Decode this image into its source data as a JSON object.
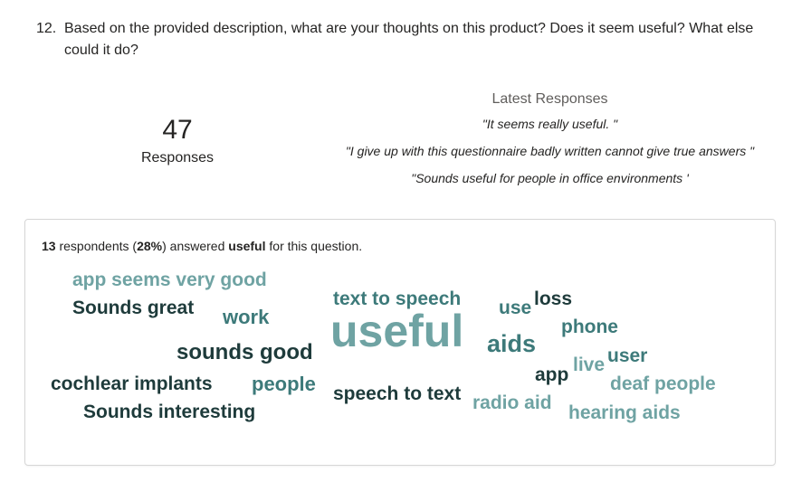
{
  "question": {
    "number": "12.",
    "text": "Based on the provided description, what are your thoughts on this product? Does it seem useful? What else could it do?"
  },
  "responses": {
    "count": "47",
    "label": "Responses"
  },
  "latest": {
    "title": "Latest Responses",
    "items": [
      "\"It seems really useful. \"",
      "\"I give up with this questionnaire badly written cannot give true answers \"",
      "\"Sounds useful for people in office environments '"
    ]
  },
  "summary": {
    "count": "13",
    "text1": " respondents (",
    "percent": "28%",
    "text2": ") answered ",
    "keyword": "useful",
    "text3": " for this question."
  },
  "colors": {
    "dark": "#1e3b3b",
    "teal": "#3d7a7a",
    "light": "#6fa3a3"
  },
  "word_cloud": [
    {
      "text": "app seems very good",
      "tone": "light"
    },
    {
      "text": "Sounds great",
      "tone": "dark"
    },
    {
      "text": "work",
      "tone": "teal"
    },
    {
      "text": "text to speech",
      "tone": "teal"
    },
    {
      "text": "use",
      "tone": "teal"
    },
    {
      "text": "loss",
      "tone": "dark"
    },
    {
      "text": "useful",
      "tone": "light"
    },
    {
      "text": "phone",
      "tone": "teal"
    },
    {
      "text": "sounds good",
      "tone": "dark"
    },
    {
      "text": "aids",
      "tone": "teal"
    },
    {
      "text": "user",
      "tone": "teal"
    },
    {
      "text": "live",
      "tone": "light"
    },
    {
      "text": "app",
      "tone": "dark"
    },
    {
      "text": "cochlear implants",
      "tone": "dark"
    },
    {
      "text": "people",
      "tone": "teal"
    },
    {
      "text": "deaf people",
      "tone": "light"
    },
    {
      "text": "speech to text",
      "tone": "dark"
    },
    {
      "text": "radio aid",
      "tone": "light"
    },
    {
      "text": "Sounds interesting",
      "tone": "dark"
    },
    {
      "text": "hearing aids",
      "tone": "light"
    }
  ]
}
